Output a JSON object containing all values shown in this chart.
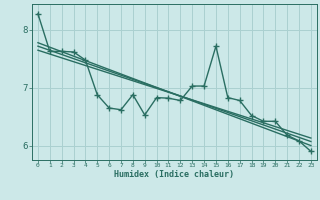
{
  "xlabel": "Humidex (Indice chaleur)",
  "background_color": "#cce8e8",
  "grid_color": "#aad0d0",
  "line_color": "#2a6e62",
  "xlim": [
    -0.5,
    23.5
  ],
  "ylim": [
    5.75,
    8.45
  ],
  "yticks": [
    6,
    7,
    8
  ],
  "xticks": [
    0,
    1,
    2,
    3,
    4,
    5,
    6,
    7,
    8,
    9,
    10,
    11,
    12,
    13,
    14,
    15,
    16,
    17,
    18,
    19,
    20,
    21,
    22,
    23
  ],
  "scatter_x": [
    0,
    1,
    2,
    3,
    4,
    5,
    6,
    7,
    8,
    9,
    10,
    11,
    12,
    13,
    14,
    15,
    16,
    17,
    18,
    19,
    20,
    21,
    22,
    23
  ],
  "scatter_y": [
    8.28,
    7.63,
    7.63,
    7.62,
    7.48,
    6.88,
    6.65,
    6.62,
    6.88,
    6.53,
    6.83,
    6.82,
    6.78,
    7.03,
    7.03,
    7.72,
    6.83,
    6.78,
    6.52,
    6.42,
    6.42,
    6.18,
    6.08,
    5.9
  ],
  "reg_line1_x": [
    0,
    23
  ],
  "reg_line1_y": [
    7.72,
    6.07
  ],
  "reg_line2_x": [
    0,
    23
  ],
  "reg_line2_y": [
    7.65,
    6.13
  ],
  "reg_line3_x": [
    0,
    23
  ],
  "reg_line3_y": [
    7.78,
    6.0
  ],
  "line_width": 1.0,
  "marker_size": 3.5
}
